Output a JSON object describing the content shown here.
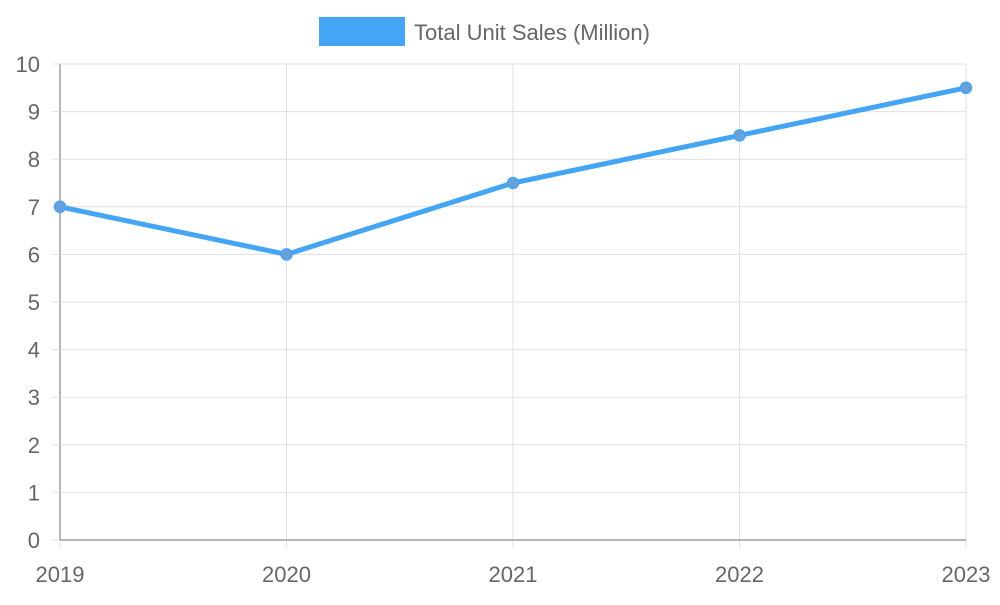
{
  "chart_data": {
    "type": "line",
    "x": [
      "2019",
      "2020",
      "2021",
      "2022",
      "2023"
    ],
    "series": [
      {
        "name": "Total Unit Sales (Million)",
        "values": [
          7.0,
          6.0,
          7.5,
          8.5,
          9.5
        ],
        "color": "#45a5f5"
      }
    ],
    "ylim": [
      0,
      10
    ],
    "y_ticks": [
      "0",
      "1",
      "2",
      "3",
      "4",
      "5",
      "6",
      "7",
      "8",
      "9",
      "10"
    ],
    "grid": true,
    "legend_position": "top-center",
    "title": "",
    "xlabel": "",
    "ylabel": ""
  },
  "colors": {
    "grid": "#e0e0e0",
    "axis": "#9e9e9e",
    "text": "#666666",
    "point": "#6aa0d8"
  }
}
